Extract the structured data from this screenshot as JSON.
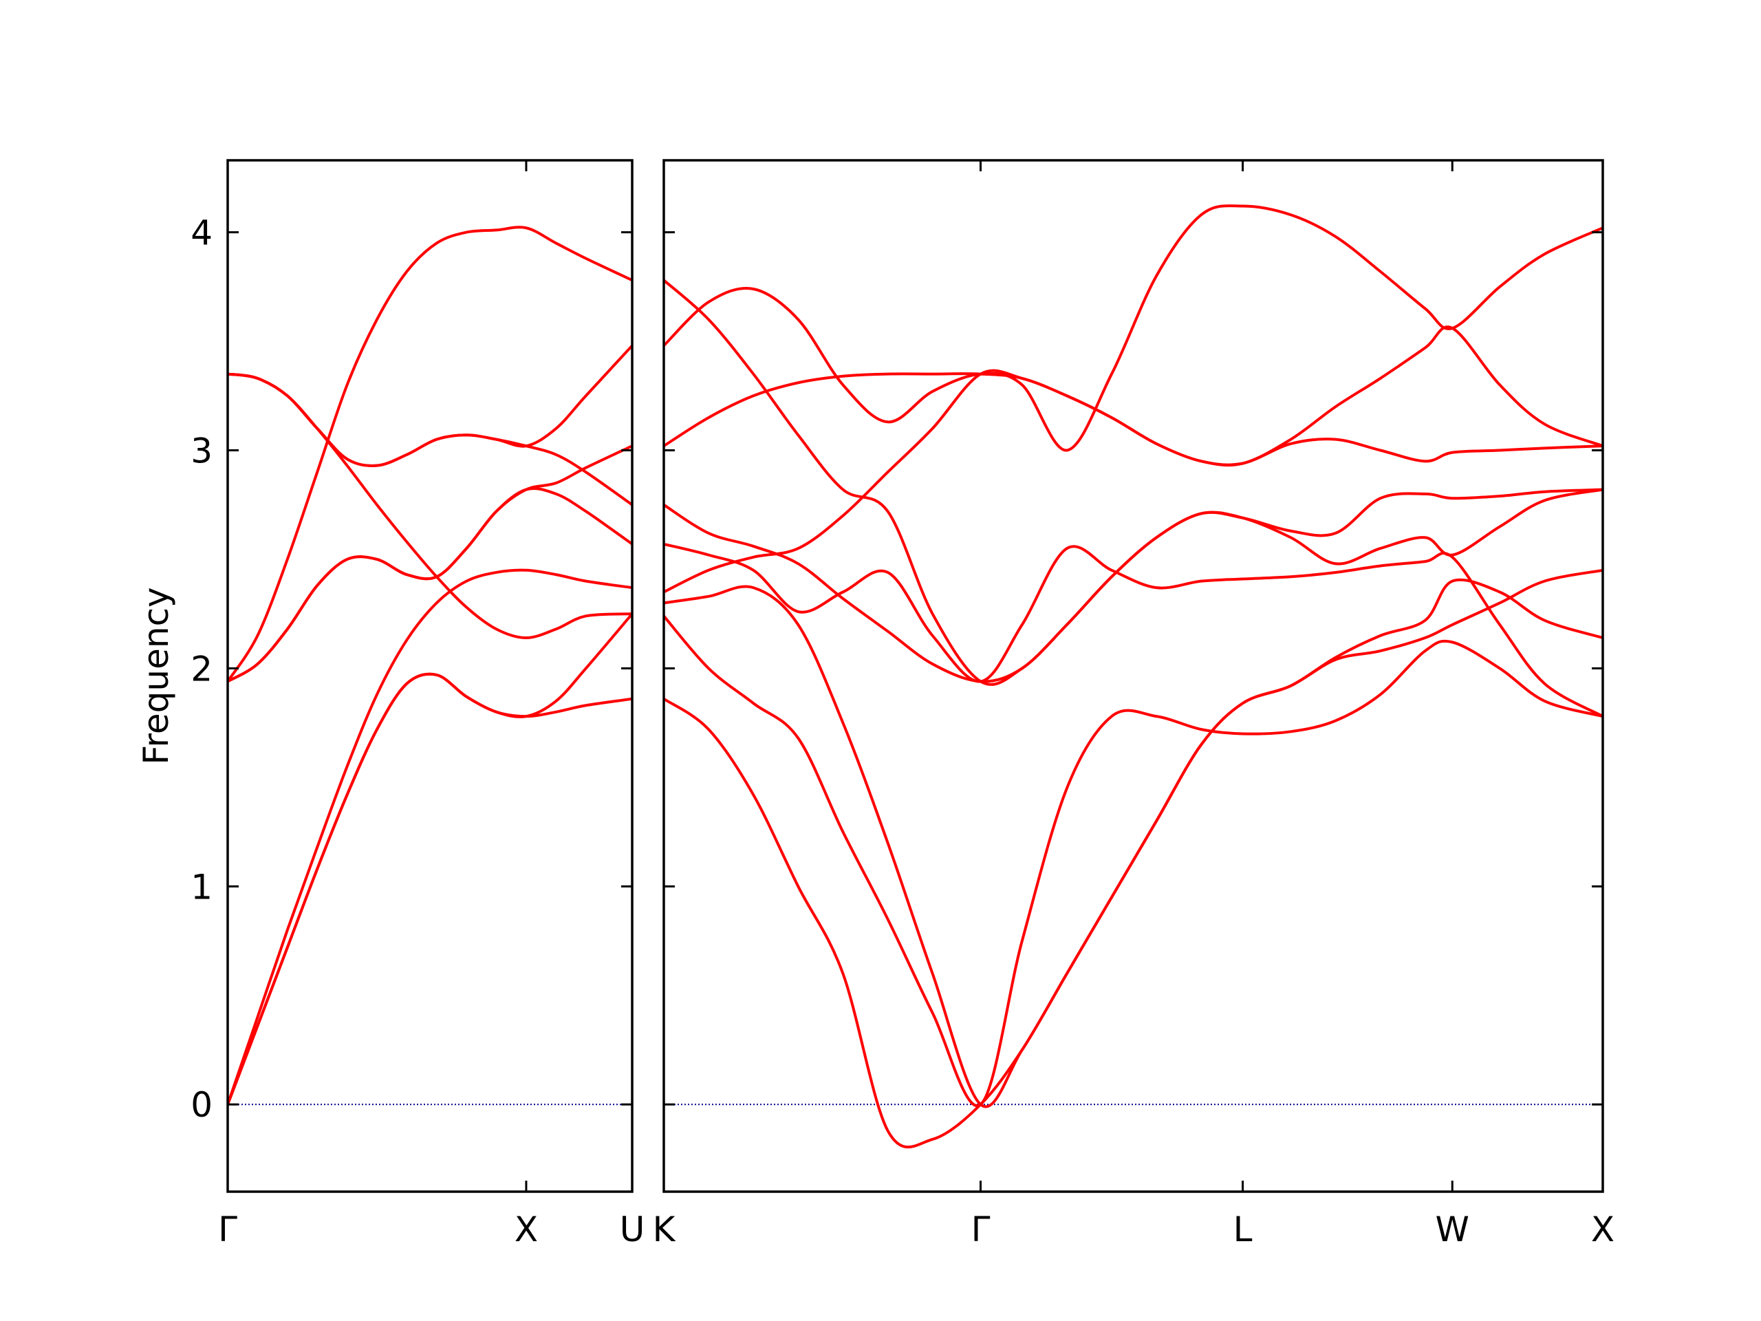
{
  "chart_data": [
    {
      "type": "line",
      "ylabel": "Frequency",
      "color": "#ff0000",
      "zero_line_color": "#00008b",
      "show_ytick_labels": true,
      "x": [
        0,
        0.1,
        0.2,
        0.3,
        0.4,
        0.5,
        0.6,
        0.7,
        0.8,
        0.9,
        1.0,
        1.1,
        1.2,
        1.355
      ],
      "xlim": [
        0,
        1.355
      ],
      "xticks": [
        {
          "value": 0,
          "label": "Γ"
        },
        {
          "value": 1.0,
          "label": "X"
        },
        {
          "value": 1.355,
          "label": "U"
        }
      ],
      "ylim": [
        -0.4,
        4.33
      ],
      "yticks": [
        0,
        1,
        2,
        3,
        4
      ],
      "series": [
        {
          "values": [
            0,
            0.36,
            0.72,
            1.08,
            1.42,
            1.72,
            1.93,
            1.97,
            1.87,
            1.8,
            1.78,
            1.8,
            1.83,
            1.86
          ]
        },
        {
          "values": [
            0,
            0.36,
            0.72,
            1.08,
            1.42,
            1.72,
            1.93,
            1.97,
            1.87,
            1.8,
            1.78,
            1.85,
            2.0,
            2.25
          ]
        },
        {
          "values": [
            0,
            0.4,
            0.8,
            1.18,
            1.55,
            1.88,
            2.13,
            2.3,
            2.4,
            2.44,
            2.45,
            2.43,
            2.4,
            2.37
          ]
        },
        {
          "values": [
            1.94,
            2.15,
            2.5,
            2.9,
            3.3,
            3.6,
            3.82,
            3.95,
            4.0,
            4.01,
            4.02,
            3.95,
            3.88,
            3.78
          ]
        },
        {
          "values": [
            1.94,
            2.02,
            2.18,
            2.38,
            2.5,
            2.5,
            2.43,
            2.42,
            2.55,
            2.72,
            2.82,
            2.85,
            2.92,
            3.02
          ]
        },
        {
          "values": [
            1.94,
            2.02,
            2.18,
            2.38,
            2.5,
            2.5,
            2.43,
            2.42,
            2.55,
            2.72,
            2.82,
            2.8,
            2.72,
            2.57
          ]
        },
        {
          "values": [
            3.35,
            3.33,
            3.25,
            3.1,
            2.96,
            2.93,
            2.98,
            3.05,
            3.07,
            3.05,
            3.02,
            3.1,
            3.25,
            3.48
          ]
        },
        {
          "values": [
            3.35,
            3.33,
            3.25,
            3.1,
            2.96,
            2.93,
            2.98,
            3.05,
            3.07,
            3.05,
            3.02,
            2.98,
            2.9,
            2.75
          ]
        },
        {
          "values": [
            3.35,
            3.33,
            3.25,
            3.1,
            2.93,
            2.75,
            2.58,
            2.42,
            2.28,
            2.18,
            2.14,
            2.18,
            2.24,
            2.25
          ]
        }
      ]
    },
    {
      "type": "line",
      "color": "#ff0000",
      "zero_line_color": "#00008b",
      "show_ytick_labels": false,
      "x": [
        0,
        0.15,
        0.3,
        0.45,
        0.6,
        0.75,
        0.9,
        1.061,
        1.2,
        1.35,
        1.5,
        1.65,
        1.8,
        1.939,
        2.1,
        2.25,
        2.4,
        2.55,
        2.641,
        2.8,
        2.95,
        3.145
      ],
      "xlim": [
        0,
        3.145
      ],
      "xticks": [
        {
          "value": 0,
          "label": "K"
        },
        {
          "value": 1.061,
          "label": "Γ"
        },
        {
          "value": 1.939,
          "label": "L"
        },
        {
          "value": 2.641,
          "label": "W"
        },
        {
          "value": 3.145,
          "label": "X"
        }
      ],
      "ylim": [
        -0.4,
        4.33
      ],
      "yticks": [
        0,
        1,
        2,
        3,
        4
      ],
      "series": [
        {
          "values": [
            1.86,
            1.72,
            1.42,
            1.0,
            0.6,
            -0.12,
            -0.16,
            0,
            0.25,
            0.6,
            0.95,
            1.3,
            1.65,
            1.84,
            1.92,
            2.05,
            2.15,
            2.22,
            2.4,
            2.35,
            2.22,
            2.14
          ]
        },
        {
          "values": [
            2.24,
            2.0,
            1.84,
            1.68,
            1.25,
            0.85,
            0.42,
            0,
            0.75,
            1.45,
            1.78,
            1.78,
            1.72,
            1.7,
            1.71,
            1.76,
            1.88,
            2.08,
            2.12,
            2.0,
            1.85,
            1.78
          ]
        },
        {
          "values": [
            2.3,
            2.33,
            2.37,
            2.2,
            1.75,
            1.2,
            0.6,
            0,
            0.25,
            0.6,
            0.95,
            1.3,
            1.65,
            1.84,
            1.92,
            2.04,
            2.08,
            2.14,
            2.2,
            2.3,
            2.4,
            2.45
          ]
        },
        {
          "values": [
            2.57,
            2.52,
            2.45,
            2.26,
            2.35,
            2.44,
            2.15,
            1.94,
            2.2,
            2.55,
            2.45,
            2.37,
            2.4,
            2.41,
            2.42,
            2.44,
            2.47,
            2.49,
            2.51,
            2.2,
            1.93,
            1.78
          ]
        },
        {
          "values": [
            2.35,
            2.45,
            2.51,
            2.55,
            2.7,
            2.9,
            3.1,
            3.35,
            3.33,
            3.25,
            3.15,
            3.03,
            2.95,
            2.94,
            3.05,
            3.2,
            3.33,
            3.47,
            3.56,
            3.3,
            3.12,
            3.02
          ]
        },
        {
          "values": [
            2.75,
            2.62,
            2.56,
            2.48,
            2.32,
            2.17,
            2.02,
            1.94,
            2.0,
            2.2,
            2.42,
            2.6,
            2.71,
            2.69,
            2.63,
            2.62,
            2.78,
            2.8,
            2.78,
            2.79,
            2.81,
            2.82
          ]
        },
        {
          "values": [
            3.02,
            3.15,
            3.25,
            3.31,
            3.34,
            3.35,
            3.35,
            3.35,
            3.33,
            3.25,
            3.15,
            3.03,
            2.95,
            2.94,
            3.03,
            3.05,
            3.0,
            2.95,
            2.99,
            3.0,
            3.01,
            3.02
          ]
        },
        {
          "values": [
            3.48,
            3.68,
            3.74,
            3.6,
            3.3,
            3.13,
            3.27,
            3.35,
            3.3,
            3.0,
            3.35,
            3.8,
            4.08,
            4.12,
            4.08,
            3.98,
            3.82,
            3.65,
            3.56,
            3.75,
            3.9,
            4.02
          ]
        },
        {
          "values": [
            3.78,
            3.6,
            3.35,
            3.07,
            2.82,
            2.72,
            2.25,
            1.94,
            2.0,
            2.2,
            2.42,
            2.6,
            2.71,
            2.69,
            2.6,
            2.48,
            2.55,
            2.6,
            2.52,
            2.65,
            2.77,
            2.82
          ]
        }
      ]
    }
  ]
}
